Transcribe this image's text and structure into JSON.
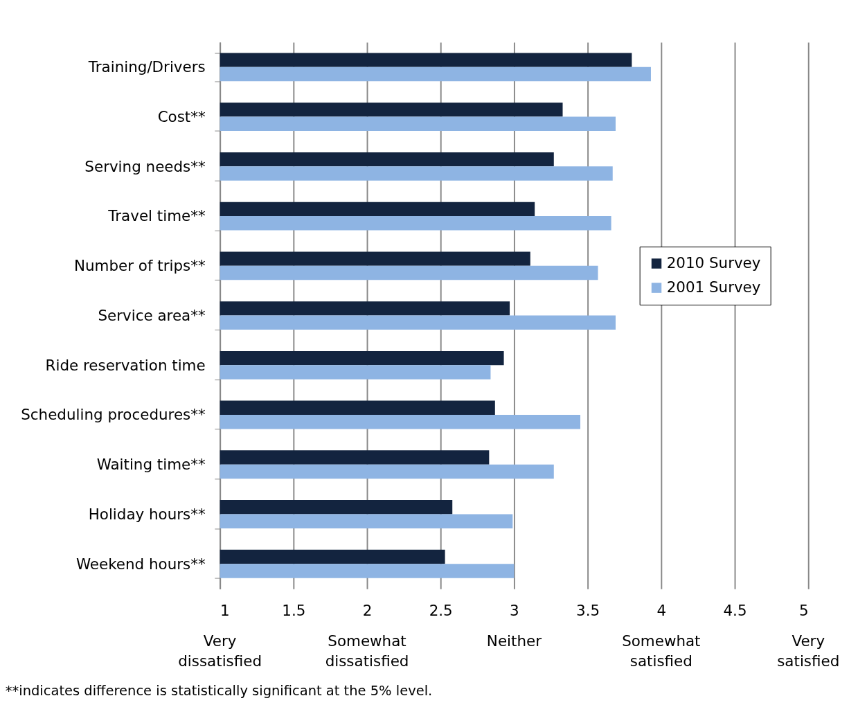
{
  "chart_data": {
    "type": "bar",
    "orientation": "horizontal",
    "categories": [
      "Training/Drivers",
      "Cost**",
      "Serving needs**",
      "Travel time**",
      "Number of trips**",
      "Service area**",
      "Ride reservation time",
      "Scheduling procedures**",
      "Waiting time**",
      "Holiday hours**",
      "Weekend hours**"
    ],
    "series": [
      {
        "name": "2010 Survey",
        "color": "#13243f",
        "values": [
          3.8,
          3.33,
          3.27,
          3.14,
          3.11,
          2.97,
          2.93,
          2.87,
          2.83,
          2.58,
          2.53
        ]
      },
      {
        "name": "2001 Survey",
        "color": "#8eb4e3",
        "values": [
          3.93,
          3.69,
          3.67,
          3.66,
          3.57,
          3.69,
          2.84,
          3.45,
          3.27,
          2.99,
          3.0
        ]
      }
    ],
    "xlim": [
      1,
      5
    ],
    "xticks": [
      1,
      1.5,
      2,
      2.5,
      3,
      3.5,
      4,
      4.5,
      5
    ],
    "grid": "x",
    "legend": "right",
    "annotations": [
      "Very\ndissatisfied",
      "Somewhat\ndissatisfied",
      "Neither",
      "Somewhat\nsatisfied",
      "Very\nsatisfied",
      "**indicates difference is statistically significant at the 5% level."
    ]
  }
}
